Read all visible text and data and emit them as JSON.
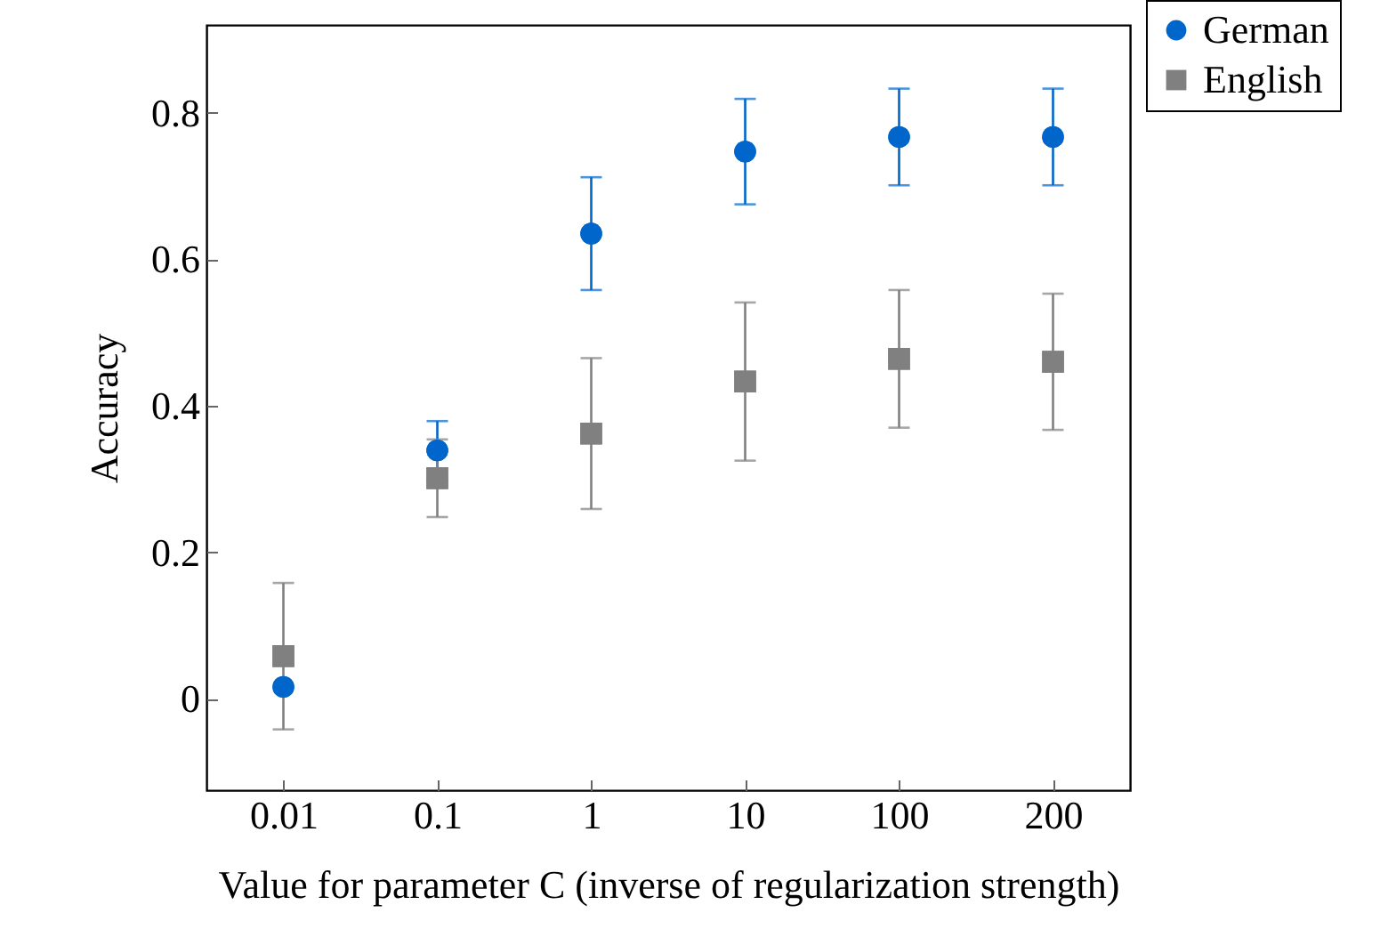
{
  "chart_data": {
    "type": "scatter",
    "xlabel": "Value for parameter C (inverse of regularization strength)",
    "ylabel": "Accuracy",
    "categories": [
      "0.01",
      "0.1",
      "1",
      "10",
      "100",
      "200"
    ],
    "ylim": [
      -0.125,
      0.92
    ],
    "yticks": [
      0,
      0.2,
      0.4,
      0.6,
      0.8
    ],
    "grid": false,
    "legend": "top right",
    "series": [
      {
        "name": "German",
        "color": "#0066cc",
        "marker": "circle",
        "values": [
          0.016,
          0.339,
          0.635,
          0.747,
          0.767,
          0.767
        ],
        "errors": [
          null,
          0.04,
          0.077,
          0.072,
          0.066,
          0.066
        ]
      },
      {
        "name": "English",
        "color": "#808080",
        "marker": "square",
        "values": [
          0.058,
          0.301,
          0.362,
          0.433,
          0.464,
          0.46
        ],
        "errors": [
          0.1,
          0.053,
          0.103,
          0.108,
          0.094,
          0.093
        ]
      }
    ]
  }
}
